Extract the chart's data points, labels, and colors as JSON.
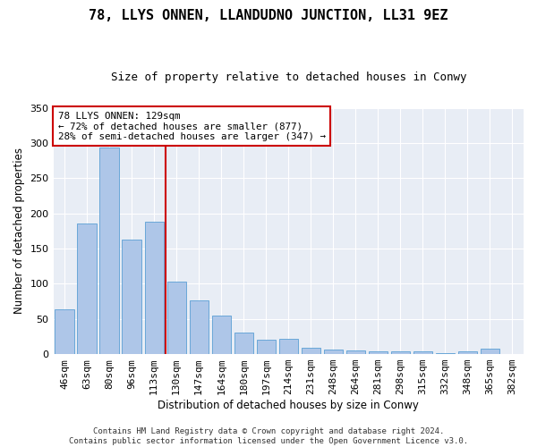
{
  "title": "78, LLYS ONNEN, LLANDUDNO JUNCTION, LL31 9EZ",
  "subtitle": "Size of property relative to detached houses in Conwy",
  "xlabel": "Distribution of detached houses by size in Conwy",
  "ylabel": "Number of detached properties",
  "categories": [
    "46sqm",
    "63sqm",
    "80sqm",
    "96sqm",
    "113sqm",
    "130sqm",
    "147sqm",
    "164sqm",
    "180sqm",
    "197sqm",
    "214sqm",
    "231sqm",
    "248sqm",
    "264sqm",
    "281sqm",
    "298sqm",
    "315sqm",
    "332sqm",
    "348sqm",
    "365sqm",
    "382sqm"
  ],
  "values": [
    63,
    185,
    293,
    163,
    188,
    103,
    76,
    55,
    30,
    21,
    22,
    9,
    7,
    5,
    4,
    4,
    4,
    1,
    4,
    8,
    0
  ],
  "bar_color": "#aec6e8",
  "bar_edge_color": "#5a9fd4",
  "vline_color": "#cc0000",
  "vline_x_index": 5,
  "annotation_text": "78 LLYS ONNEN: 129sqm\n← 72% of detached houses are smaller (877)\n28% of semi-detached houses are larger (347) →",
  "annotation_box_color": "#ffffff",
  "annotation_box_edge": "#cc0000",
  "ylim": [
    0,
    350
  ],
  "yticks": [
    0,
    50,
    100,
    150,
    200,
    250,
    300,
    350
  ],
  "plot_bg_color": "#e8edf5",
  "footer": "Contains HM Land Registry data © Crown copyright and database right 2024.\nContains public sector information licensed under the Open Government Licence v3.0.",
  "title_fontsize": 11,
  "subtitle_fontsize": 9,
  "xlabel_fontsize": 8.5,
  "ylabel_fontsize": 8.5,
  "tick_fontsize": 8,
  "footer_fontsize": 6.5
}
